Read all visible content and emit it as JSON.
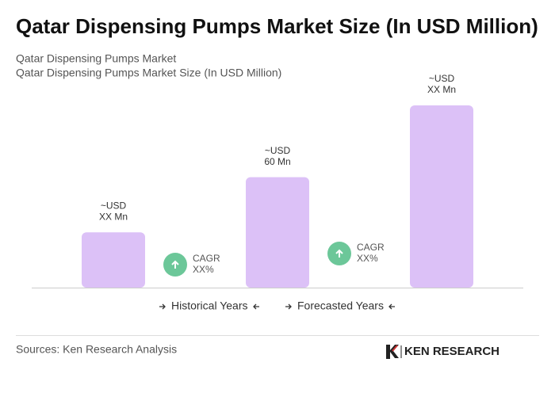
{
  "chart_data": {
    "type": "bar",
    "title": "Qatar Dispensing Pumps Market Size (In USD Million)",
    "subtitle": [
      "Qatar Dispensing Pumps Market",
      "Qatar Dispensing Pumps Market Size (In USD Million)"
    ],
    "values": [
      30,
      60,
      99
    ],
    "value_labels": [
      [
        "~USD",
        "XX Mn"
      ],
      [
        "~USD",
        "60 Mn"
      ],
      [
        "~USD",
        "XX Mn"
      ]
    ],
    "color": "#dcc1f7",
    "cagr_labels": [
      [
        "CAGR",
        "XX%"
      ],
      [
        "CAGR",
        "XX%"
      ]
    ],
    "cagr_color": "#6cc799",
    "legend": [
      "Historical Years",
      "Forecasted Years"
    ],
    "source": "Sources: Ken Research Analysis",
    "brand": "KEN RESEARCH"
  }
}
